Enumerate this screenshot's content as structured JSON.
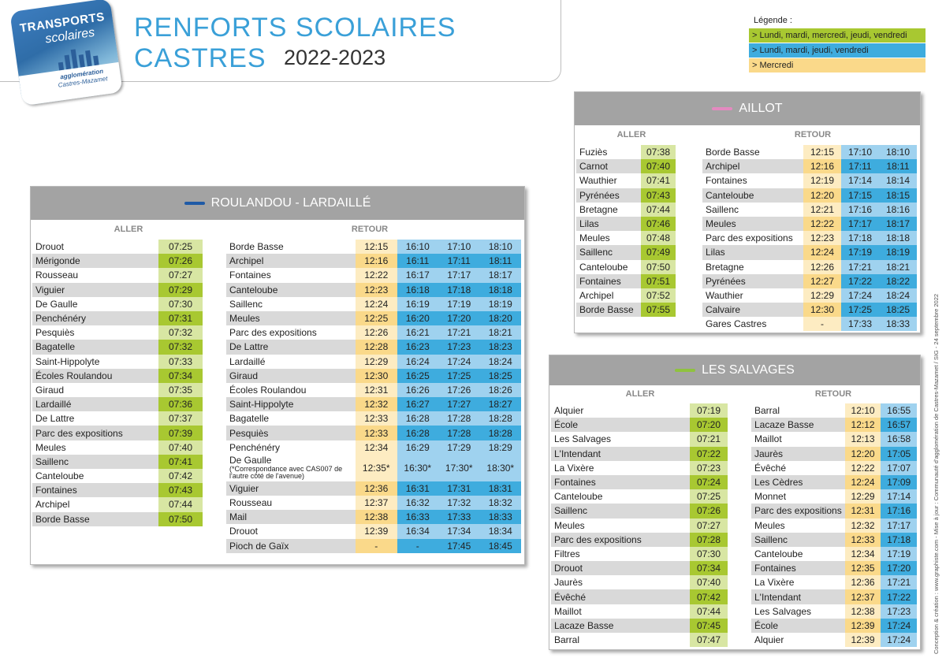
{
  "header": {
    "title": "RENFORTS SCOLAIRES CASTRES",
    "subtitle": "2022-2023",
    "logo": {
      "line1": "TRANSPORTS",
      "line2": "scolaires",
      "line3": "agglomération",
      "line4": "Castres-Mazamet"
    }
  },
  "legend": {
    "title": "Légende :",
    "items": [
      {
        "label": "> Lundi, mardi, mercredi, jeudi, vendredi",
        "color": "#a8c831"
      },
      {
        "label": "> Lundi, mardi, jeudi, vendredi",
        "color": "#3eacde"
      },
      {
        "label": "> Mercredi",
        "color": "#fad98a"
      }
    ]
  },
  "side_note": "Conception & création : www.graphiste.com - Mise à jour : Communauté d'agglomération de Castres-Mazamet / SIG - 24 septembre 2022",
  "roulandou": {
    "name": "ROULANDOU - LARDAILLÉ",
    "dash_color": "#1f5aa6",
    "aller_label": "ALLER",
    "retour_label": "RETOUR",
    "aller": [
      [
        "Drouot",
        "07:25"
      ],
      [
        "Mérigonde",
        "07:26"
      ],
      [
        "Rousseau",
        "07:27"
      ],
      [
        "Viguier",
        "07:29"
      ],
      [
        "De Gaulle",
        "07:30"
      ],
      [
        "Penchénéry",
        "07:31"
      ],
      [
        "Pesquiès",
        "07:32"
      ],
      [
        "Bagatelle",
        "07:32"
      ],
      [
        "Saint-Hippolyte",
        "07:33"
      ],
      [
        "Écoles Roulandou",
        "07:34"
      ],
      [
        "Giraud",
        "07:35"
      ],
      [
        "Lardaillé",
        "07:36"
      ],
      [
        "De Lattre",
        "07:37"
      ],
      [
        "Parc des expositions",
        "07:39"
      ],
      [
        "Meules",
        "07:40"
      ],
      [
        "Saillenc",
        "07:41"
      ],
      [
        "Canteloube",
        "07:42"
      ],
      [
        "Fontaines",
        "07:43"
      ],
      [
        "Archipel",
        "07:44"
      ],
      [
        "Borde Basse",
        "07:50"
      ]
    ],
    "retour": [
      [
        "Borde Basse",
        "12:15",
        "16:10",
        "17:10",
        "18:10"
      ],
      [
        "Archipel",
        "12:16",
        "16:11",
        "17:11",
        "18:11"
      ],
      [
        "Fontaines",
        "12:22",
        "16:17",
        "17:17",
        "18:17"
      ],
      [
        "Canteloube",
        "12:23",
        "16:18",
        "17:18",
        "18:18"
      ],
      [
        "Saillenc",
        "12:24",
        "16:19",
        "17:19",
        "18:19"
      ],
      [
        "Meules",
        "12:25",
        "16:20",
        "17:20",
        "18:20"
      ],
      [
        "Parc des expositions",
        "12:26",
        "16:21",
        "17:21",
        "18:21"
      ],
      [
        "De Lattre",
        "12:28",
        "16:23",
        "17:23",
        "18:23"
      ],
      [
        "Lardaillé",
        "12:29",
        "16:24",
        "17:24",
        "18:24"
      ],
      [
        "Giraud",
        "12:30",
        "16:25",
        "17:25",
        "18:25"
      ],
      [
        "Écoles Roulandou",
        "12:31",
        "16:26",
        "17:26",
        "18:26"
      ],
      [
        "Saint-Hippolyte",
        "12:32",
        "16:27",
        "17:27",
        "18:27"
      ],
      [
        "Bagatelle",
        "12:33",
        "16:28",
        "17:28",
        "18:28"
      ],
      [
        "Pesquiès",
        "12:33",
        "16:28",
        "17:28",
        "18:28"
      ],
      [
        "Penchénéry",
        "12:34",
        "16:29",
        "17:29",
        "18:29"
      ]
    ],
    "degaulle": {
      "name": "De Gaulle",
      "note": "(*Correspondance avec CAS007 de l'autre côté de l'avenue)",
      "times": [
        "12:35*",
        "16:30*",
        "17:30*",
        "18:30*"
      ]
    },
    "retour2": [
      [
        "Viguier",
        "12:36",
        "16:31",
        "17:31",
        "18:31"
      ],
      [
        "Rousseau",
        "12:37",
        "16:32",
        "17:32",
        "18:32"
      ],
      [
        "Mail",
        "12:38",
        "16:33",
        "17:33",
        "18:33"
      ],
      [
        "Drouot",
        "12:39",
        "16:34",
        "17:34",
        "18:34"
      ],
      [
        "Pioch de Gaïx",
        "-",
        "-",
        "17:45",
        "18:45"
      ]
    ]
  },
  "aillot": {
    "name": "AILLOT",
    "dash_color": "#e48ac0",
    "aller_label": "ALLER",
    "retour_label": "RETOUR",
    "aller": [
      [
        "Fuziès",
        "07:38"
      ],
      [
        "Carnot",
        "07:40"
      ],
      [
        "Wauthier",
        "07:41"
      ],
      [
        "Pyrénées",
        "07:43"
      ],
      [
        "Bretagne",
        "07:44"
      ],
      [
        "Lilas",
        "07:46"
      ],
      [
        "Meules",
        "07:48"
      ],
      [
        "Saillenc",
        "07:49"
      ],
      [
        "Canteloube",
        "07:50"
      ],
      [
        "Fontaines",
        "07:51"
      ],
      [
        "Archipel",
        "07:52"
      ],
      [
        "Borde Basse",
        "07:55"
      ]
    ],
    "retour": [
      [
        "Borde Basse",
        "12:15",
        "17:10",
        "18:10"
      ],
      [
        "Archipel",
        "12:16",
        "17:11",
        "18:11"
      ],
      [
        "Fontaines",
        "12:19",
        "17:14",
        "18:14"
      ],
      [
        "Canteloube",
        "12:20",
        "17:15",
        "18:15"
      ],
      [
        "Saillenc",
        "12:21",
        "17:16",
        "18:16"
      ],
      [
        "Meules",
        "12:22",
        "17:17",
        "18:17"
      ],
      [
        "Parc des expositions",
        "12:23",
        "17:18",
        "18:18"
      ],
      [
        "Lilas",
        "12:24",
        "17:19",
        "18:19"
      ],
      [
        "Bretagne",
        "12:26",
        "17:21",
        "18:21"
      ],
      [
        "Pyrénées",
        "12:27",
        "17:22",
        "18:22"
      ],
      [
        "Wauthier",
        "12:29",
        "17:24",
        "18:24"
      ],
      [
        "Calvaire",
        "12:30",
        "17:25",
        "18:25"
      ],
      [
        "Gares Castres",
        "-",
        "17:33",
        "18:33"
      ]
    ]
  },
  "salvages": {
    "name": "LES SALVAGES",
    "dash_color": "#8fc23f",
    "aller_label": "ALLER",
    "retour_label": "RETOUR",
    "aller": [
      [
        "Alquier",
        "07:19"
      ],
      [
        "École",
        "07:20"
      ],
      [
        "Les Salvages",
        "07:21"
      ],
      [
        "L'Intendant",
        "07:22"
      ],
      [
        "La Vixère",
        "07:23"
      ],
      [
        "Fontaines",
        "07:24"
      ],
      [
        "Canteloube",
        "07:25"
      ],
      [
        "Saillenc",
        "07:26"
      ],
      [
        "Meules",
        "07:27"
      ],
      [
        "Parc des expositions",
        "07:28"
      ],
      [
        "Filtres",
        "07:30"
      ],
      [
        "Drouot",
        "07:34"
      ],
      [
        "Jaurès",
        "07:40"
      ],
      [
        "Évêché",
        "07:42"
      ],
      [
        "Maillot",
        "07:44"
      ],
      [
        "Lacaze Basse",
        "07:45"
      ],
      [
        "Barral",
        "07:47"
      ]
    ],
    "retour": [
      [
        "Barral",
        "12:10",
        "16:55"
      ],
      [
        "Lacaze Basse",
        "12:12",
        "16:57"
      ],
      [
        "Maillot",
        "12:13",
        "16:58"
      ],
      [
        "Jaurès",
        "12:20",
        "17:05"
      ],
      [
        "Évêché",
        "12:22",
        "17:07"
      ],
      [
        "Les Cèdres",
        "12:24",
        "17:09"
      ],
      [
        "Monnet",
        "12:29",
        "17:14"
      ],
      [
        "Parc des expositions",
        "12:31",
        "17:16"
      ],
      [
        "Meules",
        "12:32",
        "17:17"
      ],
      [
        "Saillenc",
        "12:33",
        "17:18"
      ],
      [
        "Canteloube",
        "12:34",
        "17:19"
      ],
      [
        "Fontaines",
        "12:35",
        "17:20"
      ],
      [
        "La Vixère",
        "12:36",
        "17:21"
      ],
      [
        "L'Intendant",
        "12:37",
        "17:22"
      ],
      [
        "Les Salvages",
        "12:38",
        "17:23"
      ],
      [
        "École",
        "12:39",
        "17:24"
      ],
      [
        "Alquier",
        "12:39",
        "17:24"
      ]
    ]
  }
}
